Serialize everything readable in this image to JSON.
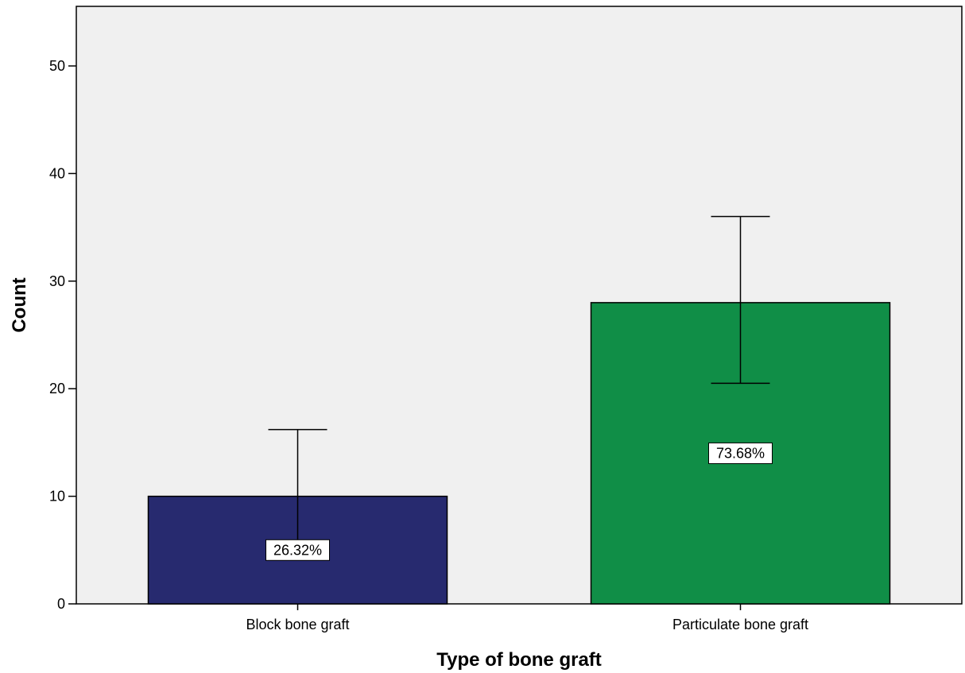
{
  "chart_data": {
    "type": "bar",
    "title": "",
    "xlabel": "Type of bone graft",
    "ylabel": "Count",
    "categories": [
      "Block bone graft",
      "Particulate bone graft"
    ],
    "values": [
      10,
      28
    ],
    "error_bars": [
      {
        "low": 5.3,
        "high": 16.2
      },
      {
        "low": 20.5,
        "high": 36.0
      }
    ],
    "data_labels": [
      "26.32%",
      "73.68%"
    ],
    "colors": [
      "#272A6F",
      "#108E47"
    ],
    "ylim": [
      0,
      56
    ],
    "yticks": [
      0,
      10,
      20,
      30,
      40,
      50
    ],
    "grid": false,
    "background_color": "#F0F0F0"
  }
}
